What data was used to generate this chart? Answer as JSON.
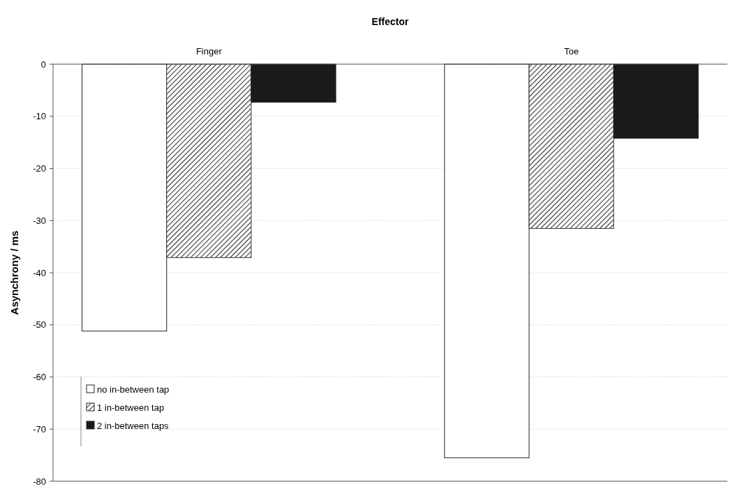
{
  "chart_data": {
    "type": "bar",
    "title": "Effector",
    "ylabel": "Asynchrony / ms",
    "categories": [
      "Finger",
      "Toe"
    ],
    "series": [
      {
        "name": "no in-between tap",
        "color": "#ffffff",
        "values": [
          -51.2,
          -75.5
        ]
      },
      {
        "name": "1 in-between tap",
        "color": "#333333",
        "values": [
          -37.1,
          -31.5
        ]
      },
      {
        "name": "2 in-between taps",
        "color": "#1a1a1a",
        "values": [
          -7.3,
          -14.2
        ]
      }
    ],
    "ylim": [
      -80,
      0
    ],
    "yticks": [
      0,
      -10,
      -20,
      -30,
      -40,
      -50,
      -60,
      -70,
      -80
    ],
    "grid": "y",
    "legend": "bottom left"
  }
}
